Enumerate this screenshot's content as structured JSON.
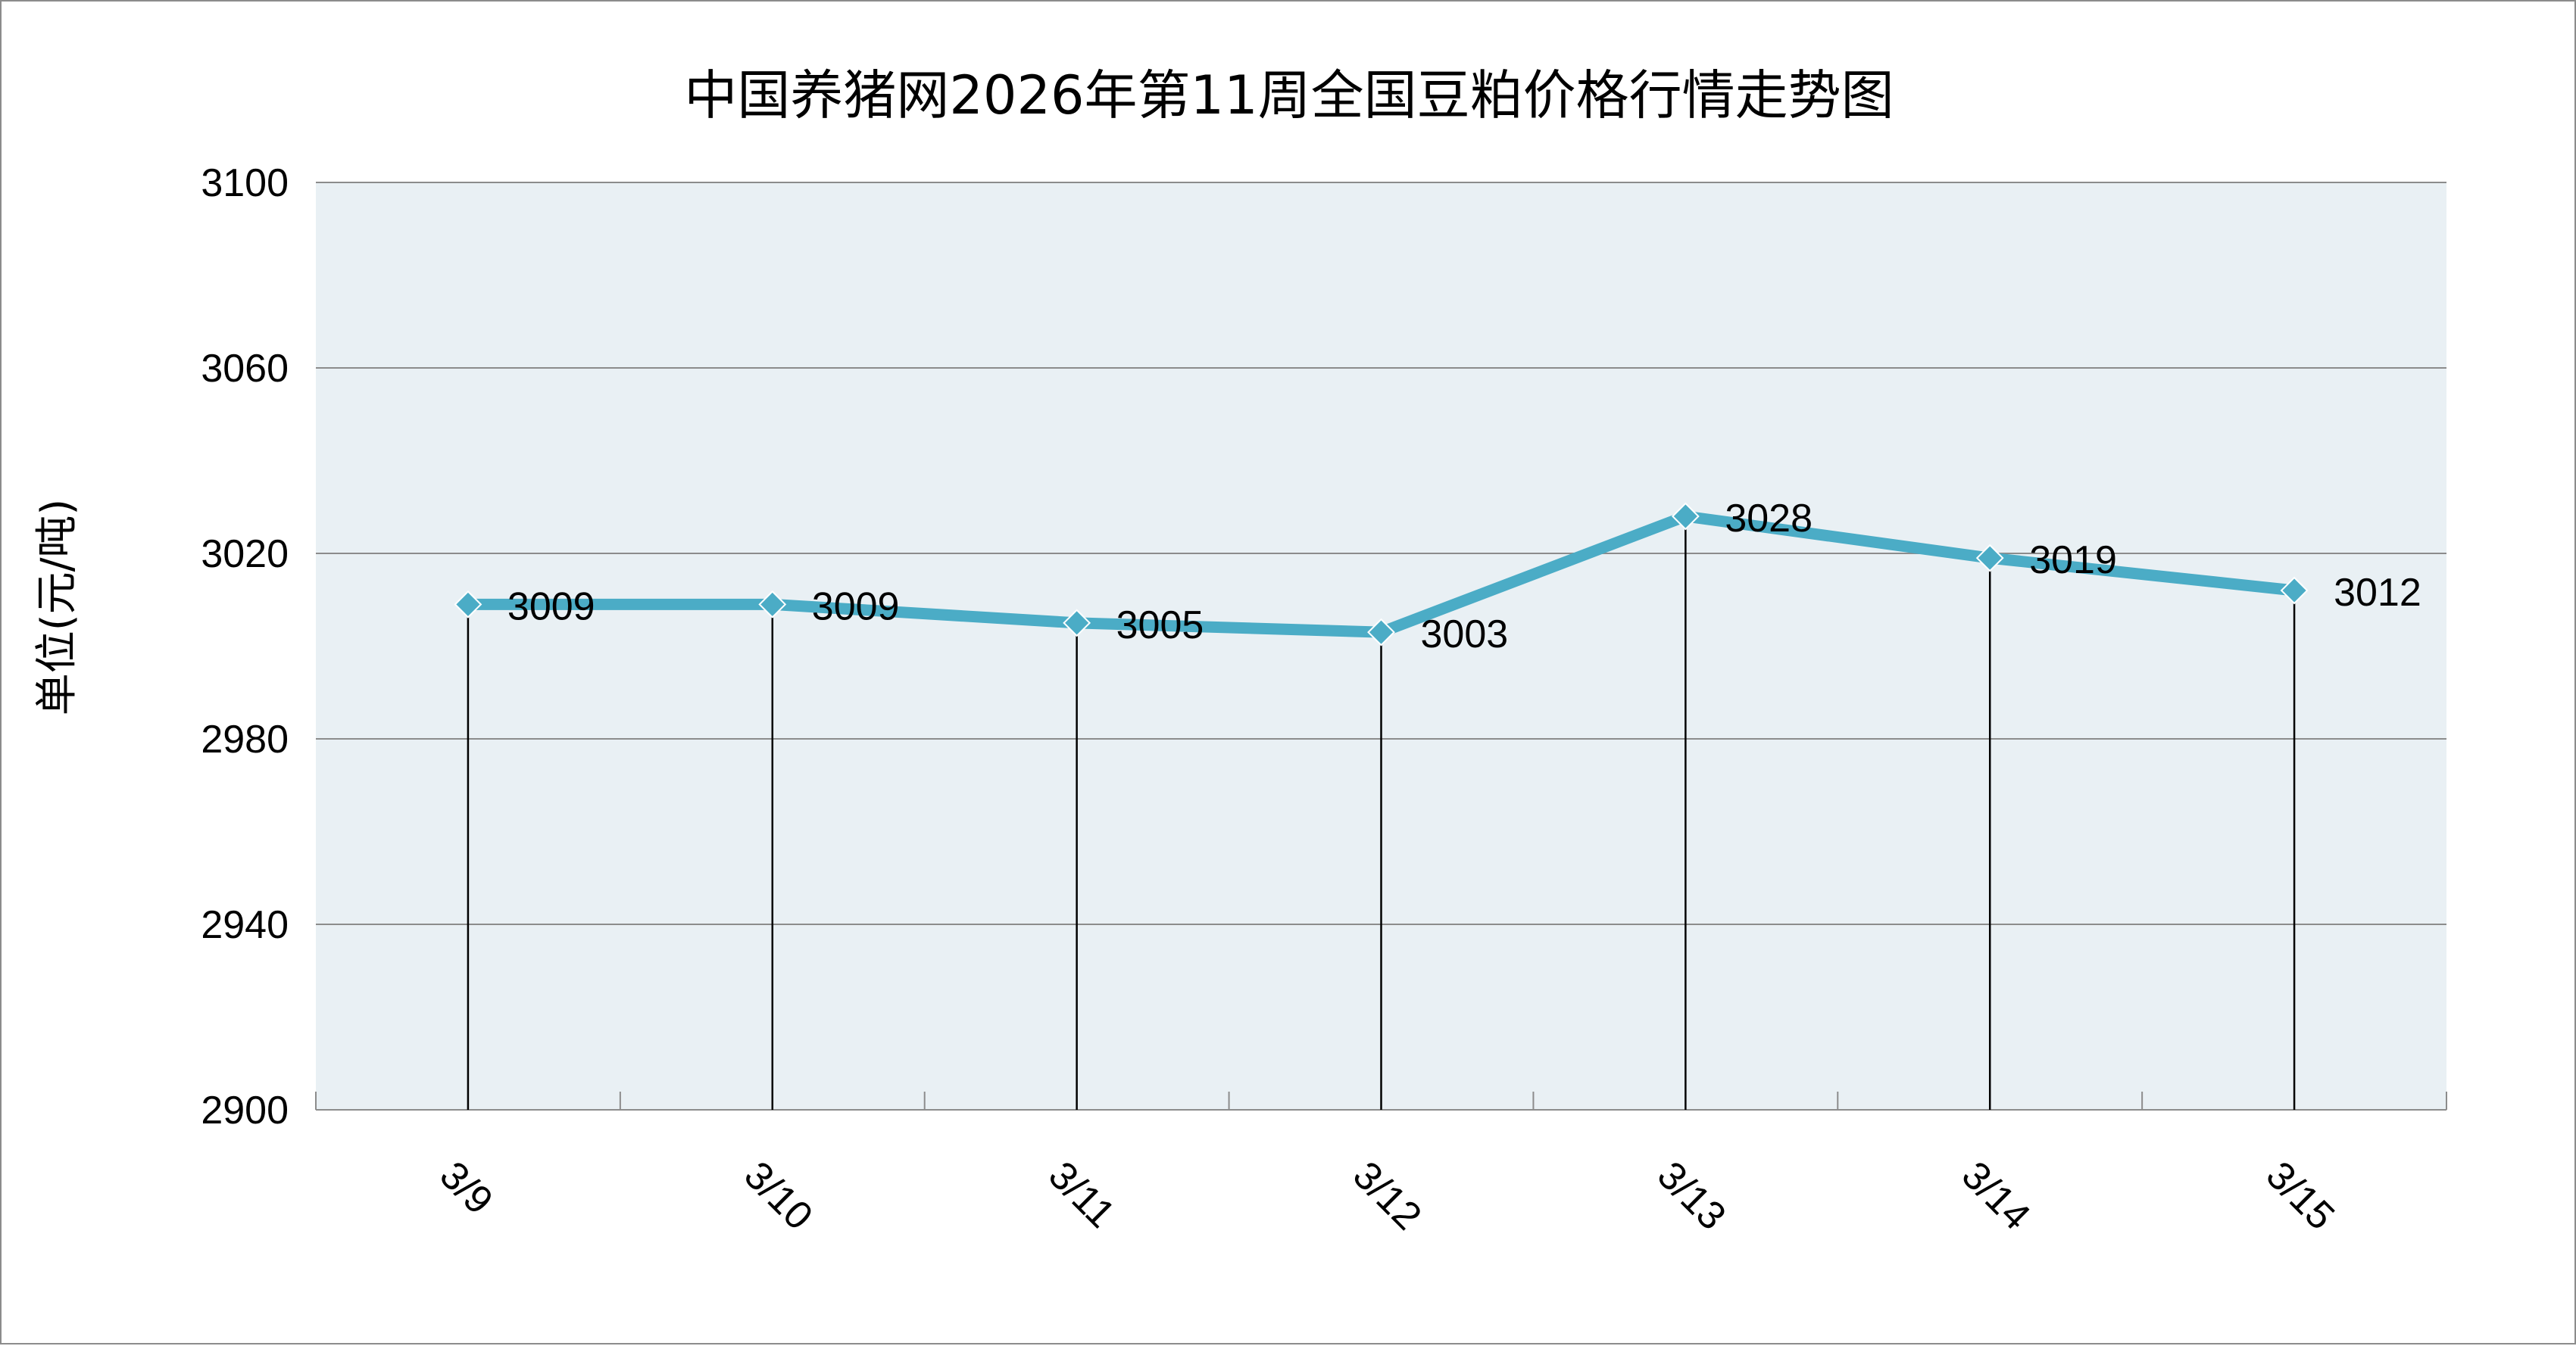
{
  "chart_data": {
    "type": "line",
    "title": "中国养猪网2026年第11周全国豆粕价格行情走势图",
    "xlabel": "",
    "ylabel": "单位(元/吨)",
    "categories": [
      "3/9",
      "3/10",
      "3/11",
      "3/12",
      "3/13",
      "3/14",
      "3/15"
    ],
    "values": [
      3009,
      3009,
      3005,
      3003,
      3028,
      3019,
      3012
    ],
    "ylim": [
      2900,
      3100
    ],
    "yticks": [
      2900,
      2940,
      2980,
      3020,
      3060,
      3100
    ],
    "grid": true,
    "data_labels": true,
    "drop_lines": true,
    "colors": {
      "line": "#4bacc6",
      "plot_background": "#e9f0f4",
      "gridline": "#8c8c8c",
      "drop_line": "#000000"
    }
  }
}
